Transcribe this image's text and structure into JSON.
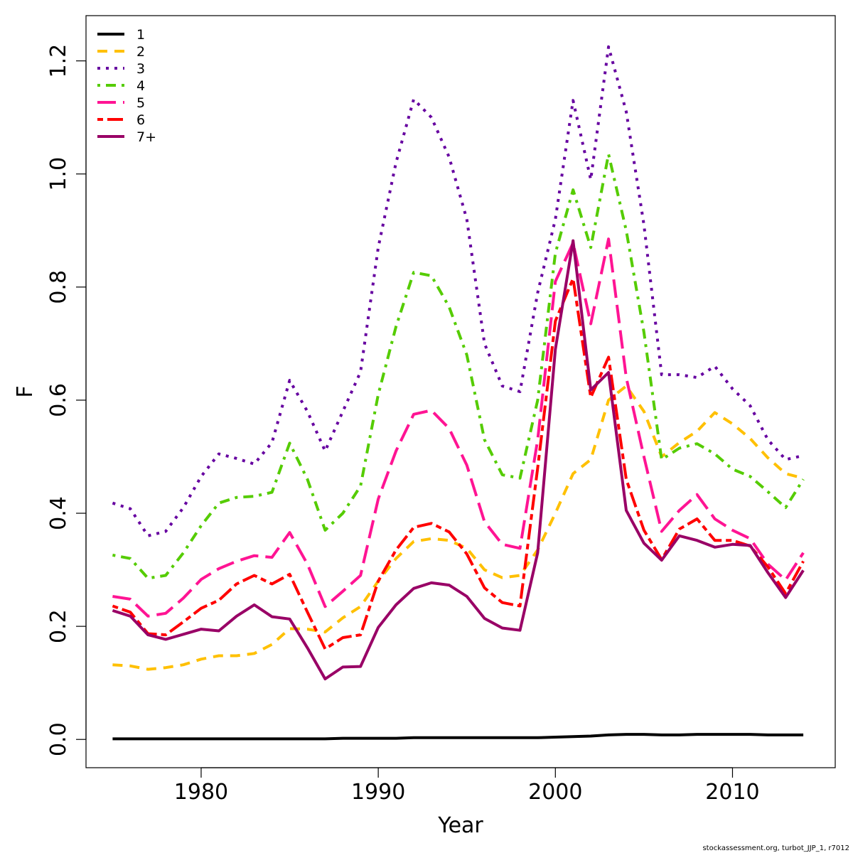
{
  "chart_data": {
    "type": "line",
    "title": "",
    "xlabel": "Year",
    "ylabel": "F",
    "xlim": [
      1973.5,
      2015.8
    ],
    "ylim": [
      -0.05,
      1.28
    ],
    "xticks": [
      1980,
      1990,
      2000,
      2010
    ],
    "xtick_labels": [
      "1980",
      "1990",
      "2000",
      "2010"
    ],
    "yticks": [
      0.0,
      0.2,
      0.4,
      0.6,
      0.8,
      1.0,
      1.2
    ],
    "ytick_labels": [
      "0.0",
      "0.2",
      "0.4",
      "0.6",
      "0.8",
      "1.0",
      "1.2"
    ],
    "grid": false,
    "legend_position": "top-left",
    "x": [
      1975,
      1976,
      1977,
      1978,
      1979,
      1980,
      1981,
      1982,
      1983,
      1984,
      1985,
      1986,
      1987,
      1988,
      1989,
      1990,
      1991,
      1992,
      1993,
      1994,
      1995,
      1996,
      1997,
      1998,
      1999,
      2000,
      2001,
      2002,
      2003,
      2004,
      2005,
      2006,
      2007,
      2008,
      2009,
      2010,
      2011,
      2012,
      2013,
      2014
    ],
    "series": [
      {
        "name": "1",
        "color": "#000000",
        "dash": "solid",
        "width": 4,
        "values": [
          0.001,
          0.001,
          0.001,
          0.001,
          0.001,
          0.001,
          0.001,
          0.001,
          0.001,
          0.001,
          0.001,
          0.001,
          0.001,
          0.002,
          0.002,
          0.002,
          0.002,
          0.003,
          0.003,
          0.003,
          0.003,
          0.003,
          0.003,
          0.003,
          0.003,
          0.004,
          0.005,
          0.006,
          0.008,
          0.009,
          0.009,
          0.008,
          0.008,
          0.009,
          0.009,
          0.009,
          0.009,
          0.008,
          0.008,
          0.008
        ]
      },
      {
        "name": "2",
        "color": "#FFC000",
        "dash": "dashed",
        "width": 4,
        "values": [
          0.132,
          0.13,
          0.124,
          0.127,
          0.132,
          0.142,
          0.148,
          0.148,
          0.152,
          0.168,
          0.196,
          0.195,
          0.19,
          0.215,
          0.235,
          0.28,
          0.32,
          0.35,
          0.355,
          0.352,
          0.338,
          0.3,
          0.286,
          0.29,
          0.335,
          0.4,
          0.47,
          0.495,
          0.6,
          0.625,
          0.58,
          0.5,
          0.525,
          0.545,
          0.578,
          0.558,
          0.532,
          0.498,
          0.47,
          0.462
        ]
      },
      {
        "name": "3",
        "color": "#6600A0",
        "dash": "dotted",
        "width": 4,
        "values": [
          0.418,
          0.408,
          0.36,
          0.368,
          0.41,
          0.465,
          0.505,
          0.497,
          0.487,
          0.525,
          0.635,
          0.58,
          0.51,
          0.58,
          0.65,
          0.87,
          1.02,
          1.132,
          1.1,
          1.03,
          0.92,
          0.7,
          0.625,
          0.615,
          0.79,
          0.92,
          1.13,
          0.99,
          1.225,
          1.11,
          0.91,
          0.645,
          0.645,
          0.64,
          0.66,
          0.62,
          0.59,
          0.53,
          0.495,
          0.502
        ]
      },
      {
        "name": "4",
        "color": "#55CC00",
        "dash": "dotdash",
        "width": 4,
        "values": [
          0.326,
          0.32,
          0.285,
          0.29,
          0.33,
          0.378,
          0.418,
          0.428,
          0.43,
          0.437,
          0.524,
          0.46,
          0.37,
          0.4,
          0.448,
          0.61,
          0.73,
          0.826,
          0.82,
          0.765,
          0.68,
          0.53,
          0.468,
          0.462,
          0.6,
          0.86,
          0.972,
          0.87,
          1.035,
          0.9,
          0.72,
          0.495,
          0.515,
          0.523,
          0.505,
          0.478,
          0.465,
          0.438,
          0.41,
          0.46
        ]
      },
      {
        "name": "5",
        "color": "#FF1493",
        "dash": "longdash",
        "width": 4,
        "values": [
          0.253,
          0.248,
          0.218,
          0.223,
          0.25,
          0.283,
          0.302,
          0.315,
          0.325,
          0.322,
          0.366,
          0.31,
          0.235,
          0.262,
          0.29,
          0.425,
          0.51,
          0.575,
          0.582,
          0.55,
          0.485,
          0.385,
          0.345,
          0.338,
          0.53,
          0.81,
          0.878,
          0.735,
          0.885,
          0.64,
          0.5,
          0.368,
          0.405,
          0.433,
          0.39,
          0.37,
          0.355,
          0.31,
          0.282,
          0.33
        ]
      },
      {
        "name": "6",
        "color": "#FF0000",
        "dash": "twodash",
        "width": 4,
        "values": [
          0.236,
          0.225,
          0.187,
          0.185,
          0.208,
          0.232,
          0.246,
          0.275,
          0.29,
          0.275,
          0.292,
          0.225,
          0.16,
          0.18,
          0.185,
          0.28,
          0.335,
          0.375,
          0.382,
          0.367,
          0.328,
          0.268,
          0.242,
          0.236,
          0.48,
          0.74,
          0.815,
          0.605,
          0.676,
          0.46,
          0.37,
          0.318,
          0.372,
          0.39,
          0.352,
          0.352,
          0.342,
          0.305,
          0.258,
          0.315
        ]
      },
      {
        "name": "7+",
        "color": "#990066",
        "dash": "solid",
        "width": 4,
        "values": [
          0.228,
          0.218,
          0.185,
          0.177,
          0.186,
          0.195,
          0.192,
          0.218,
          0.238,
          0.217,
          0.213,
          0.162,
          0.107,
          0.128,
          0.129,
          0.198,
          0.238,
          0.267,
          0.277,
          0.273,
          0.253,
          0.214,
          0.197,
          0.193,
          0.33,
          0.69,
          0.882,
          0.618,
          0.649,
          0.405,
          0.347,
          0.317,
          0.36,
          0.352,
          0.34,
          0.345,
          0.343,
          0.295,
          0.251,
          0.299
        ]
      }
    ]
  },
  "credit": "stockassessment.org, turbot_JJP_1, r7012"
}
